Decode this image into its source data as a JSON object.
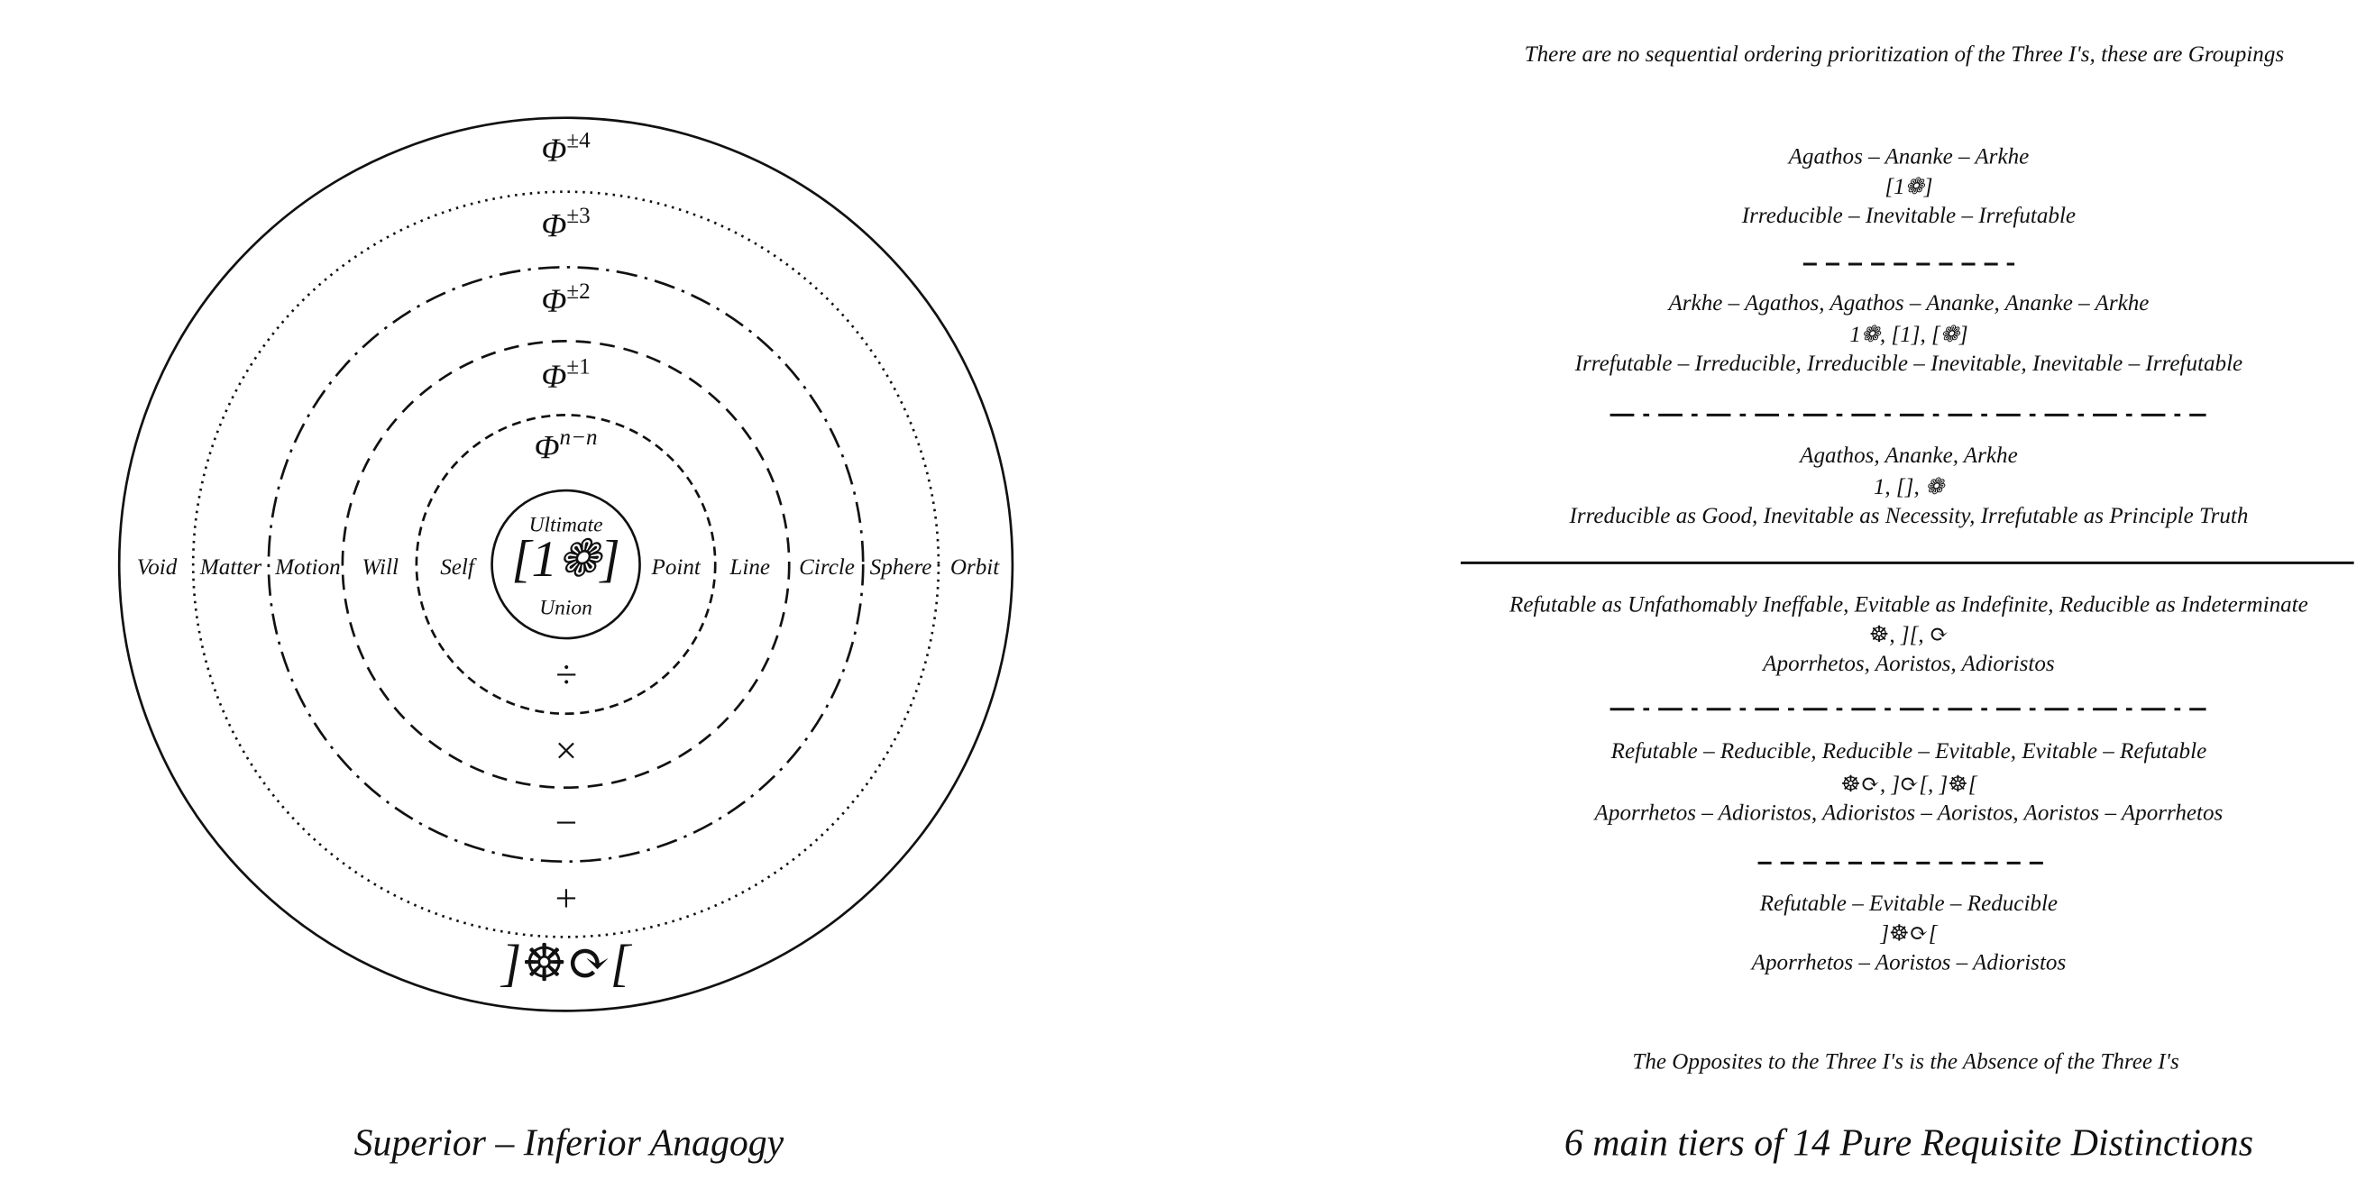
{
  "left": {
    "title": "Superior – Inferior Anagogy",
    "phi_labels": [
      {
        "base": "Φ",
        "sup": "±4"
      },
      {
        "base": "Φ",
        "sup": "±3"
      },
      {
        "base": "Φ",
        "sup": "±2"
      },
      {
        "base": "Φ",
        "sup": "±1"
      },
      {
        "base": "Φ",
        "sup": "n−n"
      }
    ],
    "center": [
      "Ultimate",
      "[1❁]",
      "Union"
    ],
    "words": [
      "Void",
      "Matter",
      "Motion",
      "Will",
      "Self",
      "Point",
      "Line",
      "Circle",
      "Sphere",
      "Orbit"
    ],
    "operators": [
      "÷",
      "×",
      "−",
      "+",
      "]☸⟳["
    ]
  },
  "right": {
    "header": "There are no sequential ordering prioritization of the Three I's, these are Groupings",
    "lines": [
      "Agathos – Ananke – Arkhe",
      "[1❁]",
      "Irreducible – Inevitable – Irrefutable",
      "Arkhe – Agathos,  Agathos – Ananke,  Ananke – Arkhe",
      "1❁, [1], [❁]",
      "Irrefutable – Irreducible,  Irreducible – Inevitable,  Inevitable – Irrefutable",
      "Agathos, Ananke, Arkhe",
      "1, [], ❁",
      "Irreducible as Good, Inevitable as Necessity,  Irrefutable as Principle Truth",
      "Refutable as Unfathomably Ineffable,  Evitable as Indefinite, Reducible as Indeterminate",
      "☸, ][,  ⟳",
      "Aporrhetos, Aoristos, Adioristos",
      "Refutable – Reducible,  Reducible – Evitable,  Evitable – Refutable",
      "☸⟳, ]⟳[, ]☸[",
      "Aporrhetos – Adioristos,  Adioristos – Aoristos,  Aoristos – Aporrhetos",
      "Refutable – Evitable – Reducible",
      "]☸⟳[",
      "Aporrhetos – Aoristos – Adioristos"
    ],
    "footer": "The Opposites to the Three I's is the Absence of the Three I's",
    "title": "6 main tiers of 14 Pure Requisite Distinctions"
  }
}
